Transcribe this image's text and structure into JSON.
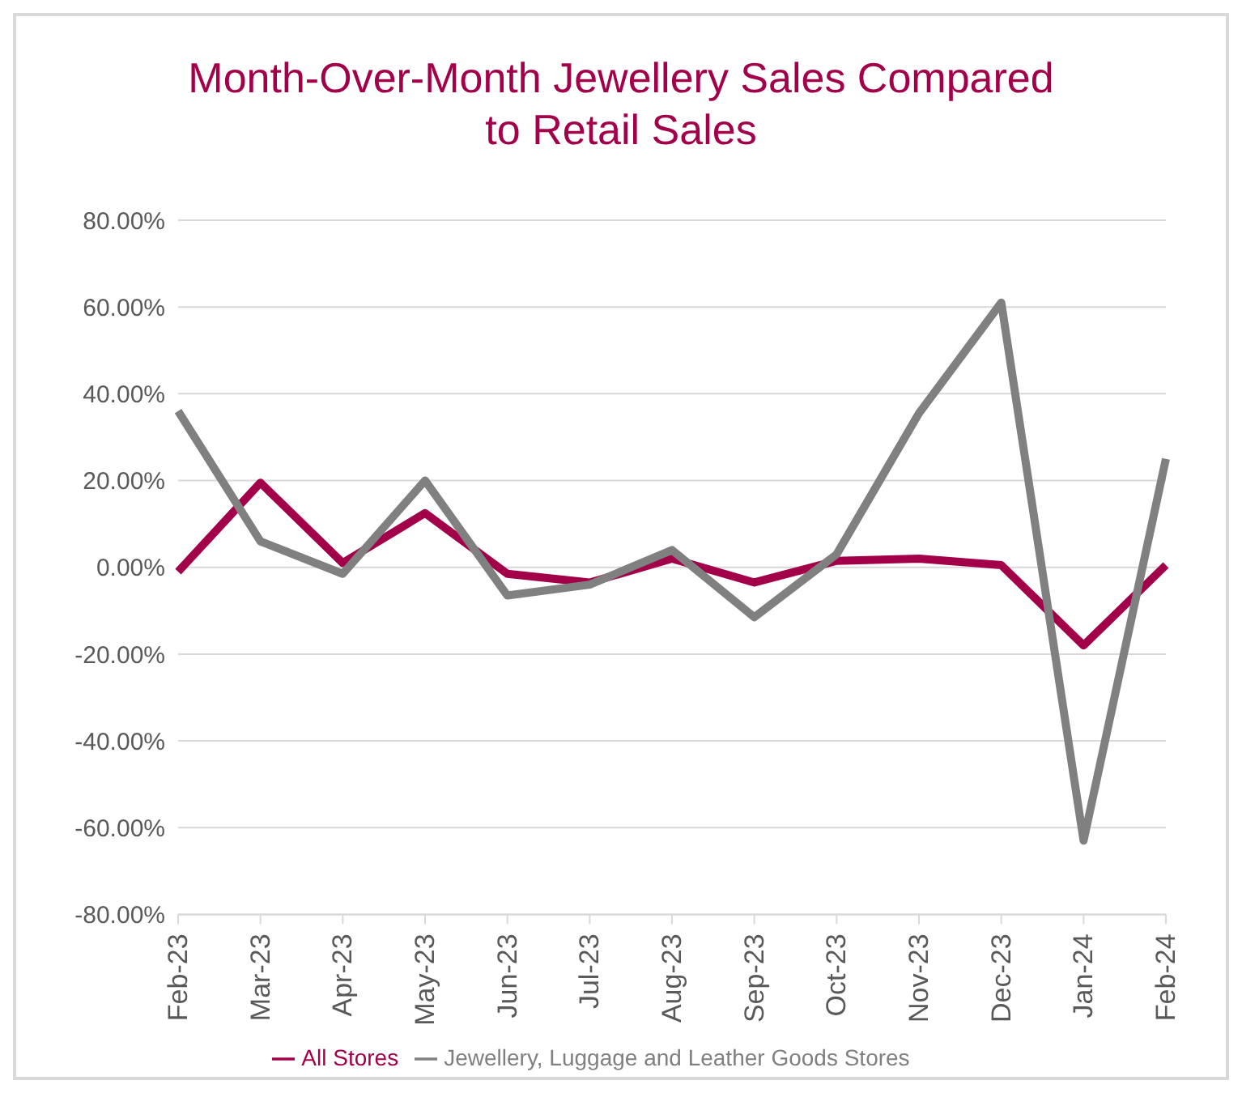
{
  "chart_data": {
    "type": "line",
    "title": "Month-Over-Month Jewellery Sales Compared to Retail Sales",
    "categories": [
      "Feb-23",
      "Mar-23",
      "Apr-23",
      "May-23",
      "Jun-23",
      "Jul-23",
      "Aug-23",
      "Sep-23",
      "Oct-23",
      "Nov-23",
      "Dec-23",
      "Jan-24",
      "Feb-24"
    ],
    "series": [
      {
        "name": "All Stores",
        "color": "#a3004a",
        "values": [
          -1,
          19.5,
          1,
          12.5,
          -1.5,
          -3.5,
          2,
          -3.5,
          1.5,
          2,
          0.5,
          -18,
          0.5
        ]
      },
      {
        "name": "Jewellery, Luggage and Leather Goods Stores",
        "color": "#808080",
        "values": [
          36,
          6,
          -1.5,
          20,
          -6.5,
          -4,
          4,
          -11.5,
          3,
          35.5,
          61,
          -63,
          25
        ]
      }
    ],
    "ylim": [
      -80,
      80
    ],
    "yticks": [
      {
        "value": -80,
        "label": "-80.00%"
      },
      {
        "value": -60,
        "label": "-60.00%"
      },
      {
        "value": -40,
        "label": "-40.00%"
      },
      {
        "value": -20,
        "label": "-20.00%"
      },
      {
        "value": 0,
        "label": "0.00%"
      },
      {
        "value": 20,
        "label": "20.00%"
      },
      {
        "value": 40,
        "label": "40.00%"
      },
      {
        "value": 60,
        "label": "60.00%"
      },
      {
        "value": 80,
        "label": "80.00%"
      }
    ],
    "grid": "y",
    "legend": "bottom",
    "marker": "none",
    "line_style": "solid"
  }
}
